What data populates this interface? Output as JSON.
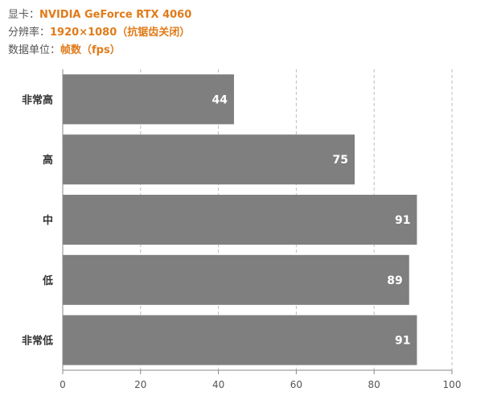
{
  "header": {
    "gpu_label": "显卡：",
    "gpu_value": "NVIDIA GeForce RTX 4060",
    "res_label": "分辨率：",
    "res_value": "1920×1080（抗锯齿关闭）",
    "unit_label": "数据单位：",
    "unit_value": "帧数（fps）"
  },
  "chart_data": {
    "type": "bar",
    "orientation": "horizontal",
    "categories": [
      "非常高",
      "高",
      "中",
      "低",
      "非常低"
    ],
    "values": [
      44,
      75,
      91,
      89,
      91
    ],
    "xlim": [
      0,
      100
    ],
    "xticks": [
      0,
      20,
      40,
      60,
      80,
      100
    ],
    "grid": "vertical dashed",
    "bar_color": "#7f7f7f",
    "label_color": "#ffffff",
    "accent_color": "#e07b1a"
  }
}
